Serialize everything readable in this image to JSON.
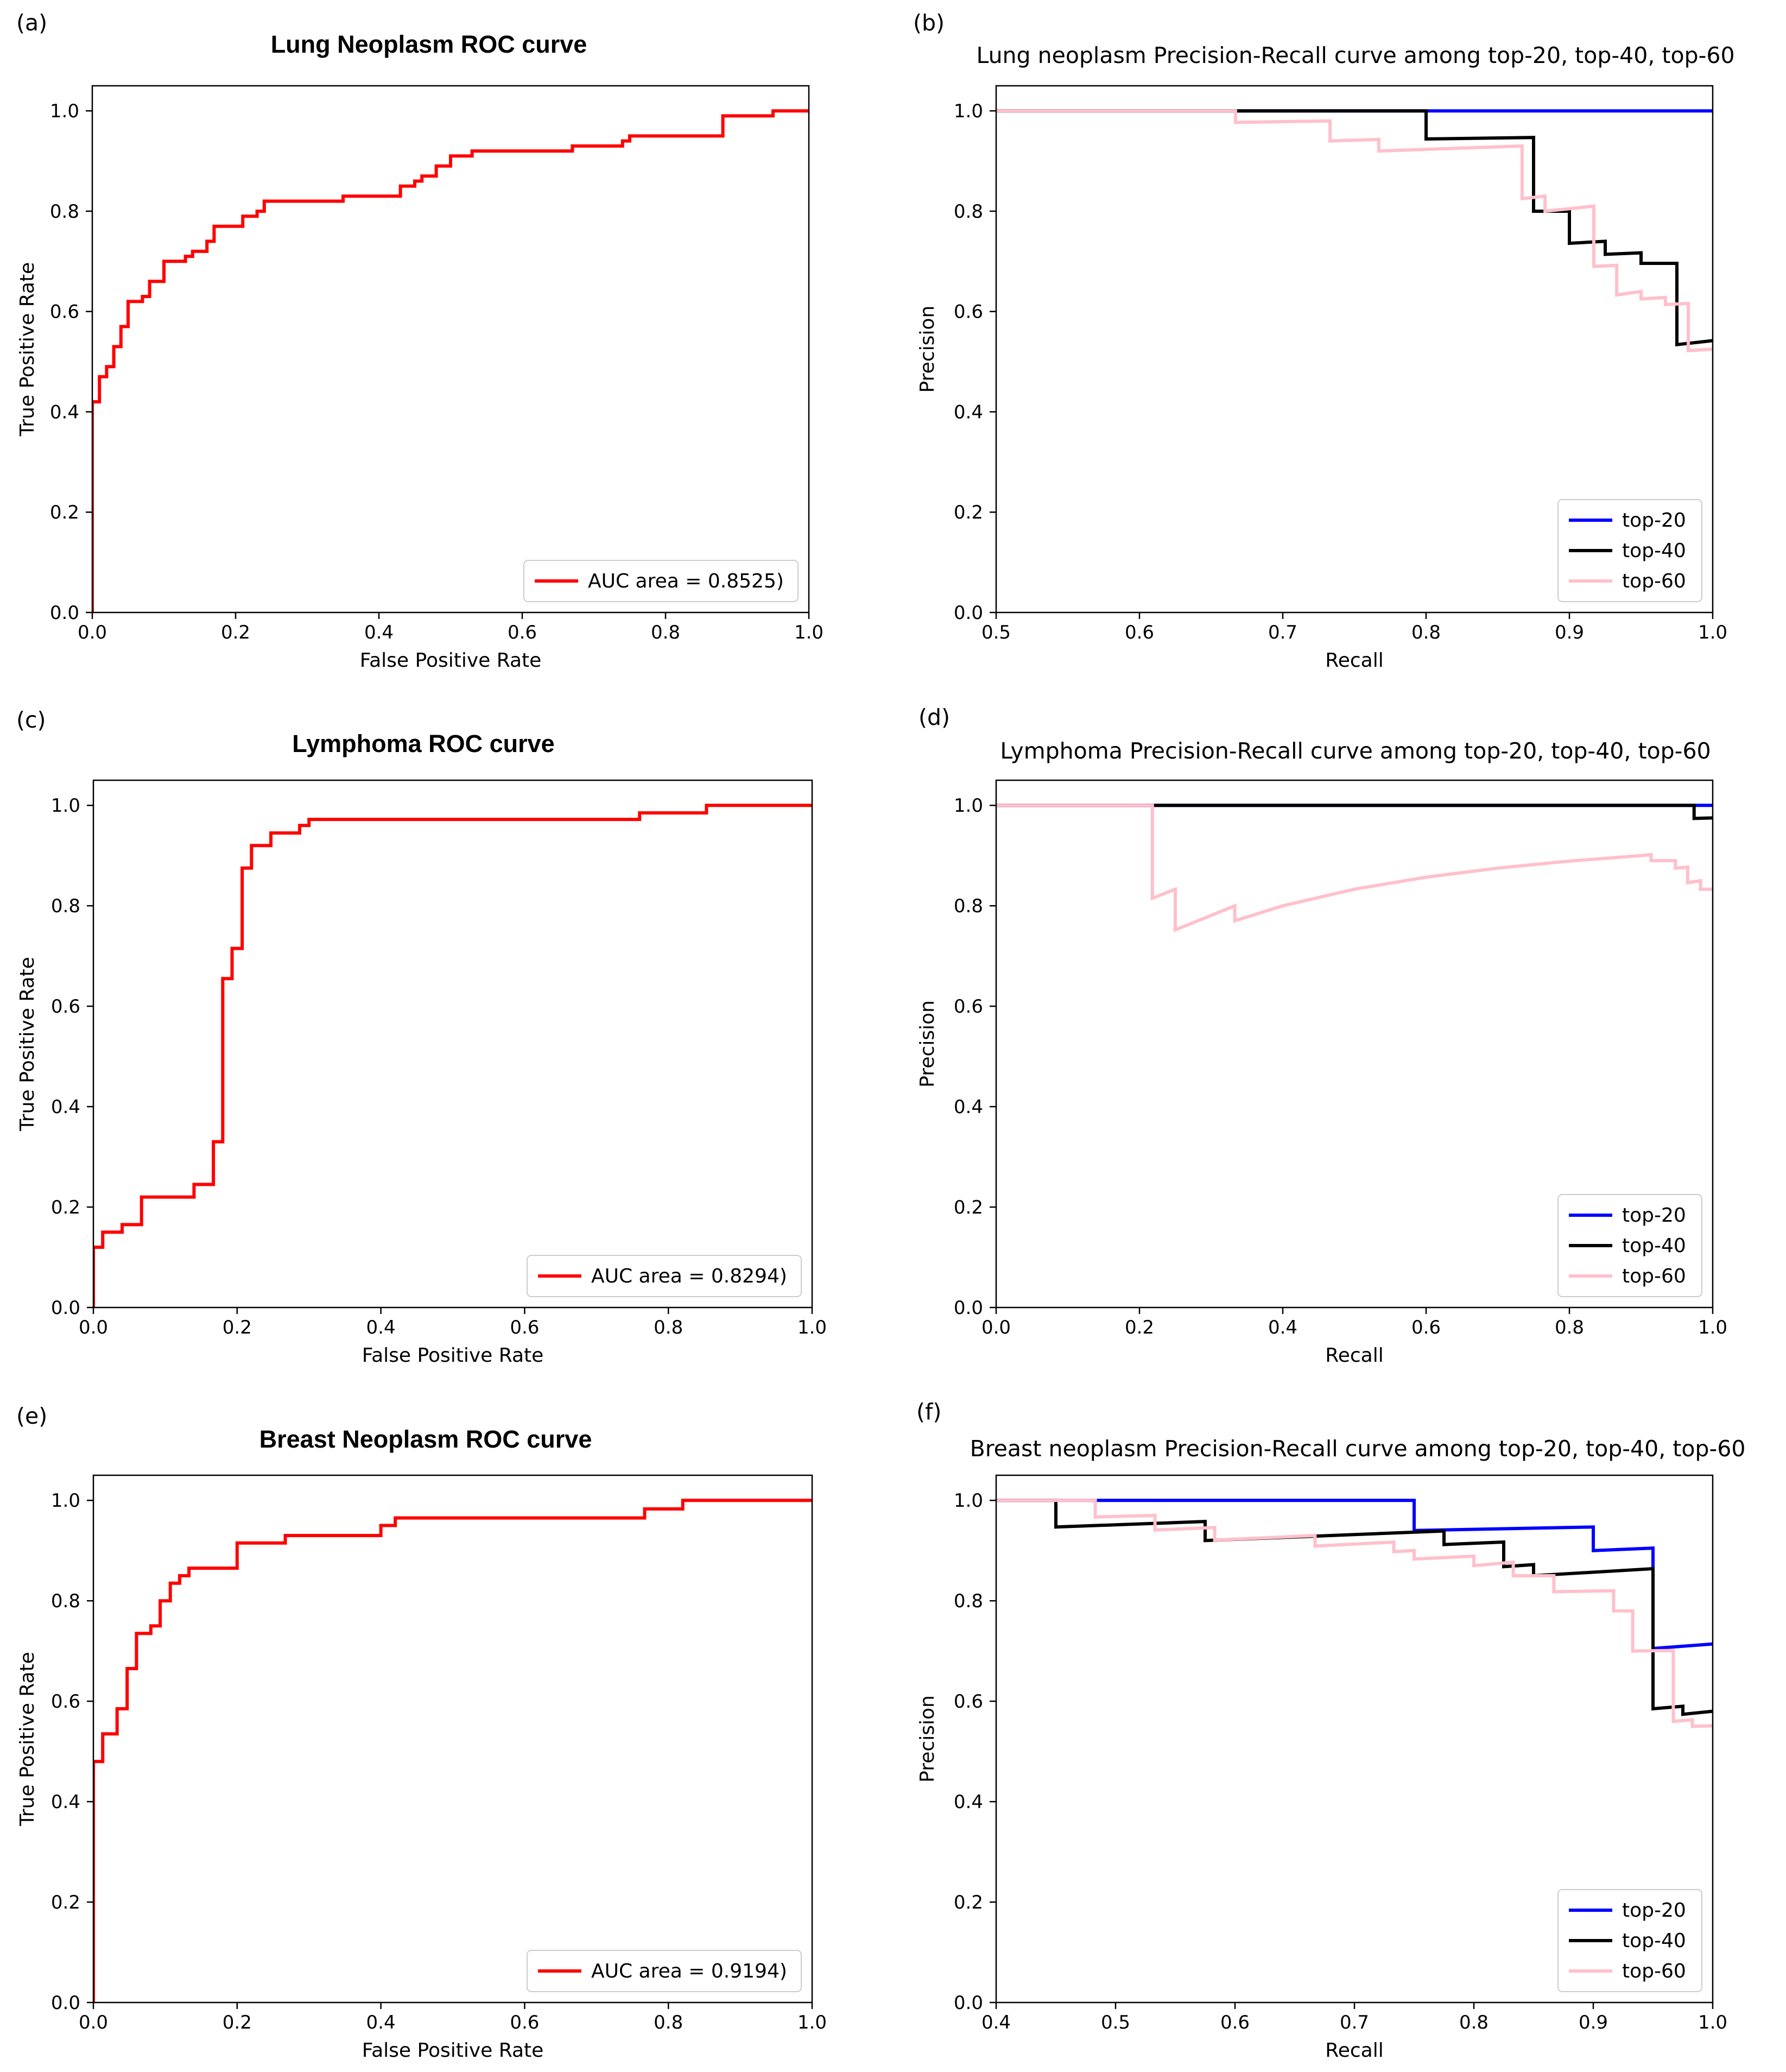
{
  "chart_data": [
    {
      "panel": "(a)",
      "type": "line",
      "title": "Lung Neoplasm ROC curve",
      "title_style": "roc",
      "xlabel": "False Positive Rate",
      "ylabel": "True Positive Rate",
      "xlim": [
        0,
        1
      ],
      "ylim": [
        0,
        1.05
      ],
      "xticks": [
        0.0,
        0.2,
        0.4,
        0.6,
        0.8,
        1.0
      ],
      "xtick_labels": [
        "0.0",
        "0.2",
        "0.4",
        "0.6",
        "0.8",
        "1.0"
      ],
      "yticks": [
        0.0,
        0.2,
        0.4,
        0.6,
        0.8,
        1.0
      ],
      "ytick_labels": [
        "0.0",
        "0.2",
        "0.4",
        "0.6",
        "0.8",
        "1.0"
      ],
      "legend": "bottom-right",
      "series": [
        {
          "name": "AUC area = 0.8525)",
          "color": "#ff0000",
          "x": [
            0,
            0,
            0.01,
            0.01,
            0.02,
            0.02,
            0.03,
            0.03,
            0.04,
            0.04,
            0.05,
            0.05,
            0.07,
            0.07,
            0.08,
            0.08,
            0.1,
            0.1,
            0.13,
            0.13,
            0.14,
            0.14,
            0.16,
            0.16,
            0.17,
            0.17,
            0.21,
            0.21,
            0.23,
            0.23,
            0.24,
            0.24,
            0.35,
            0.35,
            0.43,
            0.43,
            0.45,
            0.45,
            0.46,
            0.46,
            0.48,
            0.48,
            0.5,
            0.5,
            0.53,
            0.53,
            0.56,
            0.56,
            0.67,
            0.67,
            0.74,
            0.74,
            0.75,
            0.75,
            0.78,
            0.78,
            0.88,
            0.88,
            0.95,
            0.95,
            1.0
          ],
          "y": [
            0,
            0.42,
            0.42,
            0.47,
            0.47,
            0.49,
            0.49,
            0.53,
            0.53,
            0.57,
            0.57,
            0.62,
            0.62,
            0.63,
            0.63,
            0.66,
            0.66,
            0.7,
            0.7,
            0.71,
            0.71,
            0.72,
            0.72,
            0.74,
            0.74,
            0.77,
            0.77,
            0.79,
            0.79,
            0.8,
            0.8,
            0.82,
            0.82,
            0.83,
            0.83,
            0.85,
            0.85,
            0.86,
            0.86,
            0.87,
            0.87,
            0.89,
            0.89,
            0.91,
            0.91,
            0.92,
            0.92,
            0.92,
            0.92,
            0.93,
            0.93,
            0.94,
            0.94,
            0.95,
            0.95,
            0.95,
            0.95,
            0.99,
            0.99,
            1.0,
            1.0
          ]
        }
      ]
    },
    {
      "panel": "(b)",
      "type": "line",
      "title": "Lung neoplasm Precision-Recall curve among top-20, top-40, top-60",
      "title_style": "sans",
      "xlabel": "Recall",
      "ylabel": "Precision",
      "xlim": [
        0.5,
        1.0
      ],
      "ylim": [
        0,
        1.05
      ],
      "xticks": [
        0.5,
        0.6,
        0.7,
        0.8,
        0.9,
        1.0
      ],
      "xtick_labels": [
        "0.5",
        "0.6",
        "0.7",
        "0.8",
        "0.9",
        "1.0"
      ],
      "yticks": [
        0.0,
        0.2,
        0.4,
        0.6,
        0.8,
        1.0
      ],
      "ytick_labels": [
        "0.0",
        "0.2",
        "0.4",
        "0.6",
        "0.8",
        "1.0"
      ],
      "legend": "bottom-right",
      "series": [
        {
          "name": "top-20",
          "color": "#0000ff",
          "x": [
            0.5,
            1.0
          ],
          "y": [
            1.0,
            1.0
          ]
        },
        {
          "name": "top-40",
          "color": "#000000",
          "x": [
            0.5,
            0.8,
            0.8,
            0.875,
            0.875,
            0.9,
            0.9,
            0.925,
            0.925,
            0.95,
            0.95,
            0.975,
            0.975,
            1.0
          ],
          "y": [
            1.0,
            1.0,
            0.944,
            0.947,
            0.8,
            0.8,
            0.736,
            0.74,
            0.714,
            0.717,
            0.696,
            0.696,
            0.534,
            0.542
          ]
        },
        {
          "name": "top-60",
          "color": "#ffc0cb",
          "x": [
            0.5,
            0.667,
            0.667,
            0.733,
            0.733,
            0.767,
            0.767,
            0.867,
            0.867,
            0.883,
            0.883,
            0.917,
            0.917,
            0.933,
            0.933,
            0.95,
            0.95,
            0.967,
            0.967,
            0.983,
            0.983,
            1.0
          ],
          "y": [
            1.0,
            1.0,
            0.977,
            0.98,
            0.94,
            0.943,
            0.92,
            0.93,
            0.825,
            0.83,
            0.8,
            0.81,
            0.69,
            0.692,
            0.633,
            0.64,
            0.625,
            0.628,
            0.614,
            0.616,
            0.522,
            0.525
          ]
        }
      ]
    },
    {
      "panel": "(c)",
      "type": "line",
      "title": "Lymphoma ROC curve",
      "title_style": "roc",
      "xlabel": "False Positive Rate",
      "ylabel": "True Positive Rate",
      "xlim": [
        0,
        1
      ],
      "ylim": [
        0,
        1.05
      ],
      "xticks": [
        0.0,
        0.2,
        0.4,
        0.6,
        0.8,
        1.0
      ],
      "xtick_labels": [
        "0.0",
        "0.2",
        "0.4",
        "0.6",
        "0.8",
        "1.0"
      ],
      "yticks": [
        0.0,
        0.2,
        0.4,
        0.6,
        0.8,
        1.0
      ],
      "ytick_labels": [
        "0.0",
        "0.2",
        "0.4",
        "0.6",
        "0.8",
        "1.0"
      ],
      "legend": "bottom-right",
      "series": [
        {
          "name": "AUC area = 0.8294)",
          "color": "#ff0000",
          "x": [
            0,
            0,
            0.013,
            0.013,
            0.04,
            0.04,
            0.067,
            0.067,
            0.14,
            0.14,
            0.167,
            0.167,
            0.18,
            0.18,
            0.193,
            0.193,
            0.207,
            0.207,
            0.22,
            0.22,
            0.247,
            0.247,
            0.287,
            0.287,
            0.3,
            0.3,
            0.76,
            0.76,
            0.853,
            0.853,
            1.0
          ],
          "y": [
            0,
            0.12,
            0.12,
            0.15,
            0.15,
            0.165,
            0.165,
            0.22,
            0.22,
            0.245,
            0.245,
            0.33,
            0.33,
            0.655,
            0.655,
            0.715,
            0.715,
            0.875,
            0.875,
            0.92,
            0.92,
            0.945,
            0.945,
            0.96,
            0.96,
            0.972,
            0.972,
            0.985,
            0.985,
            1.0,
            1.0
          ]
        }
      ]
    },
    {
      "panel": "(d)",
      "type": "line",
      "title": "Lymphoma Precision-Recall curve among top-20, top-40, top-60",
      "title_style": "sans",
      "xlabel": "Recall",
      "ylabel": "Precision",
      "xlim": [
        0,
        1.0
      ],
      "ylim": [
        0,
        1.05
      ],
      "xticks": [
        0.0,
        0.2,
        0.4,
        0.6,
        0.8,
        1.0
      ],
      "xtick_labels": [
        "0.0",
        "0.2",
        "0.4",
        "0.6",
        "0.8",
        "1.0"
      ],
      "yticks": [
        0.0,
        0.2,
        0.4,
        0.6,
        0.8,
        1.0
      ],
      "ytick_labels": [
        "0.0",
        "0.2",
        "0.4",
        "0.6",
        "0.8",
        "1.0"
      ],
      "legend": "bottom-right",
      "series": [
        {
          "name": "top-20",
          "color": "#0000ff",
          "x": [
            0,
            1.0
          ],
          "y": [
            1.0,
            1.0
          ]
        },
        {
          "name": "top-40",
          "color": "#000000",
          "x": [
            0,
            0.974,
            0.974,
            1.0
          ],
          "y": [
            1.0,
            1.0,
            0.974,
            0.975
          ]
        },
        {
          "name": "top-60",
          "color": "#ffc0cb",
          "x": [
            0,
            0.218,
            0.218,
            0.25,
            0.25,
            0.333,
            0.333,
            0.4,
            0.5,
            0.6,
            0.7,
            0.8,
            0.9,
            0.914,
            0.914,
            0.948,
            0.948,
            0.965,
            0.965,
            0.983,
            0.983,
            1.0
          ],
          "y": [
            1.0,
            1.0,
            0.815,
            0.833,
            0.752,
            0.8,
            0.77,
            0.8,
            0.833,
            0.857,
            0.875,
            0.889,
            0.9,
            0.902,
            0.89,
            0.89,
            0.875,
            0.877,
            0.846,
            0.85,
            0.833,
            0.833
          ]
        }
      ]
    },
    {
      "panel": "(e)",
      "type": "line",
      "title": "Breast Neoplasm ROC curve",
      "title_style": "roc",
      "xlabel": "False Positive Rate",
      "ylabel": "True Positive Rate",
      "xlim": [
        0,
        1
      ],
      "ylim": [
        0,
        1.05
      ],
      "xticks": [
        0.0,
        0.2,
        0.4,
        0.6,
        0.8,
        1.0
      ],
      "xtick_labels": [
        "0.0",
        "0.2",
        "0.4",
        "0.6",
        "0.8",
        "1.0"
      ],
      "yticks": [
        0.0,
        0.2,
        0.4,
        0.6,
        0.8,
        1.0
      ],
      "ytick_labels": [
        "0.0",
        "0.2",
        "0.4",
        "0.6",
        "0.8",
        "1.0"
      ],
      "legend": "bottom-right",
      "series": [
        {
          "name": "AUC area = 0.9194)",
          "color": "#ff0000",
          "x": [
            0,
            0,
            0.013,
            0.013,
            0.033,
            0.033,
            0.047,
            0.047,
            0.06,
            0.06,
            0.067,
            0.067,
            0.08,
            0.08,
            0.093,
            0.093,
            0.107,
            0.107,
            0.12,
            0.12,
            0.133,
            0.133,
            0.147,
            0.147,
            0.2,
            0.2,
            0.267,
            0.267,
            0.4,
            0.4,
            0.42,
            0.42,
            0.767,
            0.767,
            0.82,
            0.82,
            1.0
          ],
          "y": [
            0,
            0.48,
            0.48,
            0.535,
            0.535,
            0.585,
            0.585,
            0.665,
            0.665,
            0.735,
            0.735,
            0.735,
            0.735,
            0.75,
            0.75,
            0.8,
            0.8,
            0.835,
            0.835,
            0.85,
            0.85,
            0.865,
            0.865,
            0.865,
            0.865,
            0.915,
            0.915,
            0.93,
            0.93,
            0.95,
            0.95,
            0.965,
            0.965,
            0.983,
            0.983,
            1.0,
            1.0
          ]
        }
      ]
    },
    {
      "panel": "(f)",
      "type": "line",
      "title": "Breast neoplasm Precision-Recall curve among top-20, top-40, top-60",
      "title_style": "sans",
      "xlabel": "Recall",
      "ylabel": "Precision",
      "xlim": [
        0.4,
        1.0
      ],
      "ylim": [
        0,
        1.05
      ],
      "xticks": [
        0.4,
        0.5,
        0.6,
        0.7,
        0.8,
        0.9,
        1.0
      ],
      "xtick_labels": [
        "0.4",
        "0.5",
        "0.6",
        "0.7",
        "0.8",
        "0.9",
        "1.0"
      ],
      "yticks": [
        0.0,
        0.2,
        0.4,
        0.6,
        0.8,
        1.0
      ],
      "ytick_labels": [
        "0.0",
        "0.2",
        "0.4",
        "0.6",
        "0.8",
        "1.0"
      ],
      "legend": "bottom-right",
      "series": [
        {
          "name": "top-20",
          "color": "#0000ff",
          "x": [
            0.4,
            0.75,
            0.75,
            0.9,
            0.9,
            0.95,
            0.95,
            1.0
          ],
          "y": [
            1.0,
            1.0,
            0.94,
            0.947,
            0.9,
            0.905,
            0.705,
            0.714
          ]
        },
        {
          "name": "top-40",
          "color": "#000000",
          "x": [
            0.4,
            0.45,
            0.45,
            0.575,
            0.575,
            0.775,
            0.775,
            0.825,
            0.825,
            0.85,
            0.85,
            0.95,
            0.95,
            0.975,
            0.975,
            1.0
          ],
          "y": [
            1.0,
            1.0,
            0.947,
            0.958,
            0.92,
            0.939,
            0.912,
            0.917,
            0.868,
            0.872,
            0.85,
            0.864,
            0.585,
            0.59,
            0.574,
            0.58
          ]
        },
        {
          "name": "top-60",
          "color": "#ffc0cb",
          "x": [
            0.4,
            0.483,
            0.483,
            0.533,
            0.533,
            0.583,
            0.583,
            0.667,
            0.667,
            0.733,
            0.733,
            0.75,
            0.75,
            0.8,
            0.8,
            0.833,
            0.833,
            0.867,
            0.867,
            0.917,
            0.917,
            0.933,
            0.933,
            0.967,
            0.967,
            0.983,
            0.983,
            1.0
          ],
          "y": [
            1.0,
            1.0,
            0.967,
            0.97,
            0.941,
            0.946,
            0.921,
            0.93,
            0.909,
            0.917,
            0.898,
            0.9,
            0.883,
            0.889,
            0.87,
            0.877,
            0.85,
            0.85,
            0.818,
            0.82,
            0.78,
            0.78,
            0.7,
            0.701,
            0.56,
            0.563,
            0.55,
            0.551
          ]
        }
      ]
    }
  ]
}
